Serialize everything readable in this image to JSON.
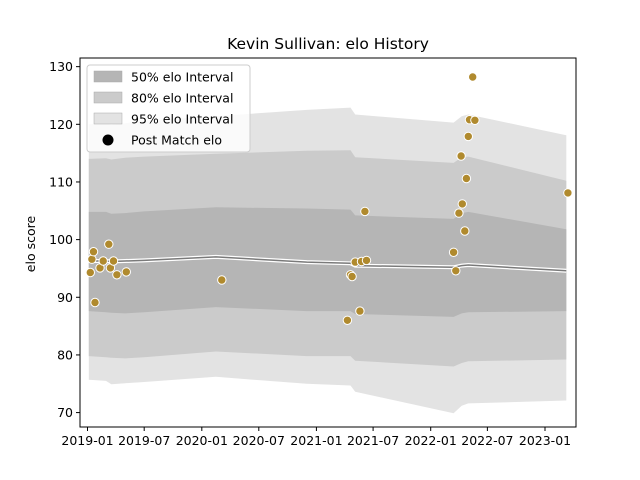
{
  "chart_data": {
    "type": "line",
    "title": "Kevin Sullivan: elo History",
    "xlabel": "",
    "ylabel": "elo score",
    "xlim": [
      "2018-12-08",
      "2023-04-10"
    ],
    "ylim": [
      67.5,
      131.5
    ],
    "yticks": [
      70,
      80,
      90,
      100,
      110,
      120,
      130
    ],
    "xticks": [
      {
        "date": "2019-01-01",
        "label": "2019-01"
      },
      {
        "date": "2019-07-01",
        "label": "2019-07"
      },
      {
        "date": "2020-01-01",
        "label": "2020-01"
      },
      {
        "date": "2020-07-01",
        "label": "2020-07"
      },
      {
        "date": "2021-01-01",
        "label": "2021-01"
      },
      {
        "date": "2021-07-01",
        "label": "2021-07"
      },
      {
        "date": "2022-01-01",
        "label": "2022-01"
      },
      {
        "date": "2022-07-01",
        "label": "2022-07"
      },
      {
        "date": "2023-01-01",
        "label": "2023-01"
      }
    ],
    "grid": false,
    "legend_position": "top-left",
    "legend": [
      {
        "label": "50% elo Interval",
        "kind": "band",
        "color": "#b5b5b5"
      },
      {
        "label": "80% elo Interval",
        "kind": "band",
        "color": "#cbcbcb"
      },
      {
        "label": "95% elo Interval",
        "kind": "band",
        "color": "#e3e3e3"
      },
      {
        "label": "Post Match elo",
        "kind": "marker",
        "color": "#000000"
      }
    ],
    "colors": {
      "band95": "#e3e3e3",
      "band80": "#cbcbcb",
      "band50": "#b5b5b5",
      "mean_line": "#7a7a7a",
      "mean_halo": "#ffffff",
      "points": "#b08a2e",
      "point_edge": "#ffffff"
    },
    "series": [
      {
        "kind": "interval",
        "x": [
          "2019-01-05",
          "2019-03-01",
          "2019-03-18",
          "2019-05-01",
          "2019-07-01",
          "2020-02-15",
          "2020-12-01",
          "2021-04-20",
          "2021-05-05",
          "2022-03-15",
          "2022-04-10",
          "2022-05-01",
          "2023-03-10"
        ],
        "mean": [
          96.3,
          96.3,
          96.2,
          96.3,
          96.4,
          97.0,
          96.1,
          95.9,
          95.5,
          95.2,
          95.5,
          95.6,
          94.6
        ],
        "p50_low": [
          87.6,
          87.4,
          87.3,
          87.2,
          87.4,
          88.3,
          87.6,
          87.6,
          87.1,
          86.6,
          87.2,
          87.4,
          87.6
        ],
        "p50_high": [
          104.8,
          104.8,
          104.5,
          104.6,
          104.9,
          105.6,
          105.4,
          105.2,
          104.2,
          103.6,
          104.6,
          104.8,
          101.8
        ],
        "p80_low": [
          79.8,
          79.6,
          79.5,
          79.4,
          79.6,
          80.6,
          79.8,
          79.8,
          79.0,
          78.0,
          78.6,
          78.9,
          79.2
        ],
        "p80_high": [
          114.0,
          114.1,
          113.9,
          114.2,
          114.4,
          114.9,
          115.4,
          115.5,
          114.3,
          113.3,
          114.3,
          114.4,
          110.2
        ],
        "p95_low": [
          75.7,
          75.5,
          74.9,
          75.1,
          75.3,
          76.2,
          75.0,
          74.7,
          73.6,
          69.9,
          71.2,
          71.6,
          72.1
        ],
        "p95_high": [
          120.0,
          120.1,
          119.9,
          120.2,
          120.6,
          121.4,
          122.5,
          122.9,
          121.7,
          120.3,
          121.4,
          121.7,
          118.1
        ]
      },
      {
        "kind": "scatter",
        "name": "Post Match elo",
        "points": [
          {
            "x": "2019-01-10",
            "y": 94.3
          },
          {
            "x": "2019-01-15",
            "y": 96.6
          },
          {
            "x": "2019-01-20",
            "y": 97.9
          },
          {
            "x": "2019-01-25",
            "y": 89.1
          },
          {
            "x": "2019-02-10",
            "y": 95.1
          },
          {
            "x": "2019-02-20",
            "y": 96.3
          },
          {
            "x": "2019-03-10",
            "y": 99.2
          },
          {
            "x": "2019-03-15",
            "y": 95.1
          },
          {
            "x": "2019-03-25",
            "y": 96.3
          },
          {
            "x": "2019-04-05",
            "y": 93.9
          },
          {
            "x": "2019-05-05",
            "y": 94.4
          },
          {
            "x": "2020-03-05",
            "y": 93.0
          },
          {
            "x": "2021-04-10",
            "y": 86.0
          },
          {
            "x": "2021-04-20",
            "y": 93.9
          },
          {
            "x": "2021-04-25",
            "y": 93.6
          },
          {
            "x": "2021-05-05",
            "y": 96.1
          },
          {
            "x": "2021-05-20",
            "y": 87.6
          },
          {
            "x": "2021-05-25",
            "y": 96.2
          },
          {
            "x": "2021-06-05",
            "y": 104.9
          },
          {
            "x": "2021-06-10",
            "y": 96.4
          },
          {
            "x": "2022-03-15",
            "y": 97.8
          },
          {
            "x": "2022-03-22",
            "y": 94.6
          },
          {
            "x": "2022-04-01",
            "y": 104.6
          },
          {
            "x": "2022-04-08",
            "y": 114.5
          },
          {
            "x": "2022-04-12",
            "y": 106.2
          },
          {
            "x": "2022-04-20",
            "y": 101.5
          },
          {
            "x": "2022-04-25",
            "y": 110.6
          },
          {
            "x": "2022-05-01",
            "y": 117.9
          },
          {
            "x": "2022-05-05",
            "y": 120.8
          },
          {
            "x": "2022-05-15",
            "y": 128.2
          },
          {
            "x": "2022-05-22",
            "y": 120.7
          },
          {
            "x": "2023-03-15",
            "y": 108.1
          }
        ]
      }
    ]
  }
}
